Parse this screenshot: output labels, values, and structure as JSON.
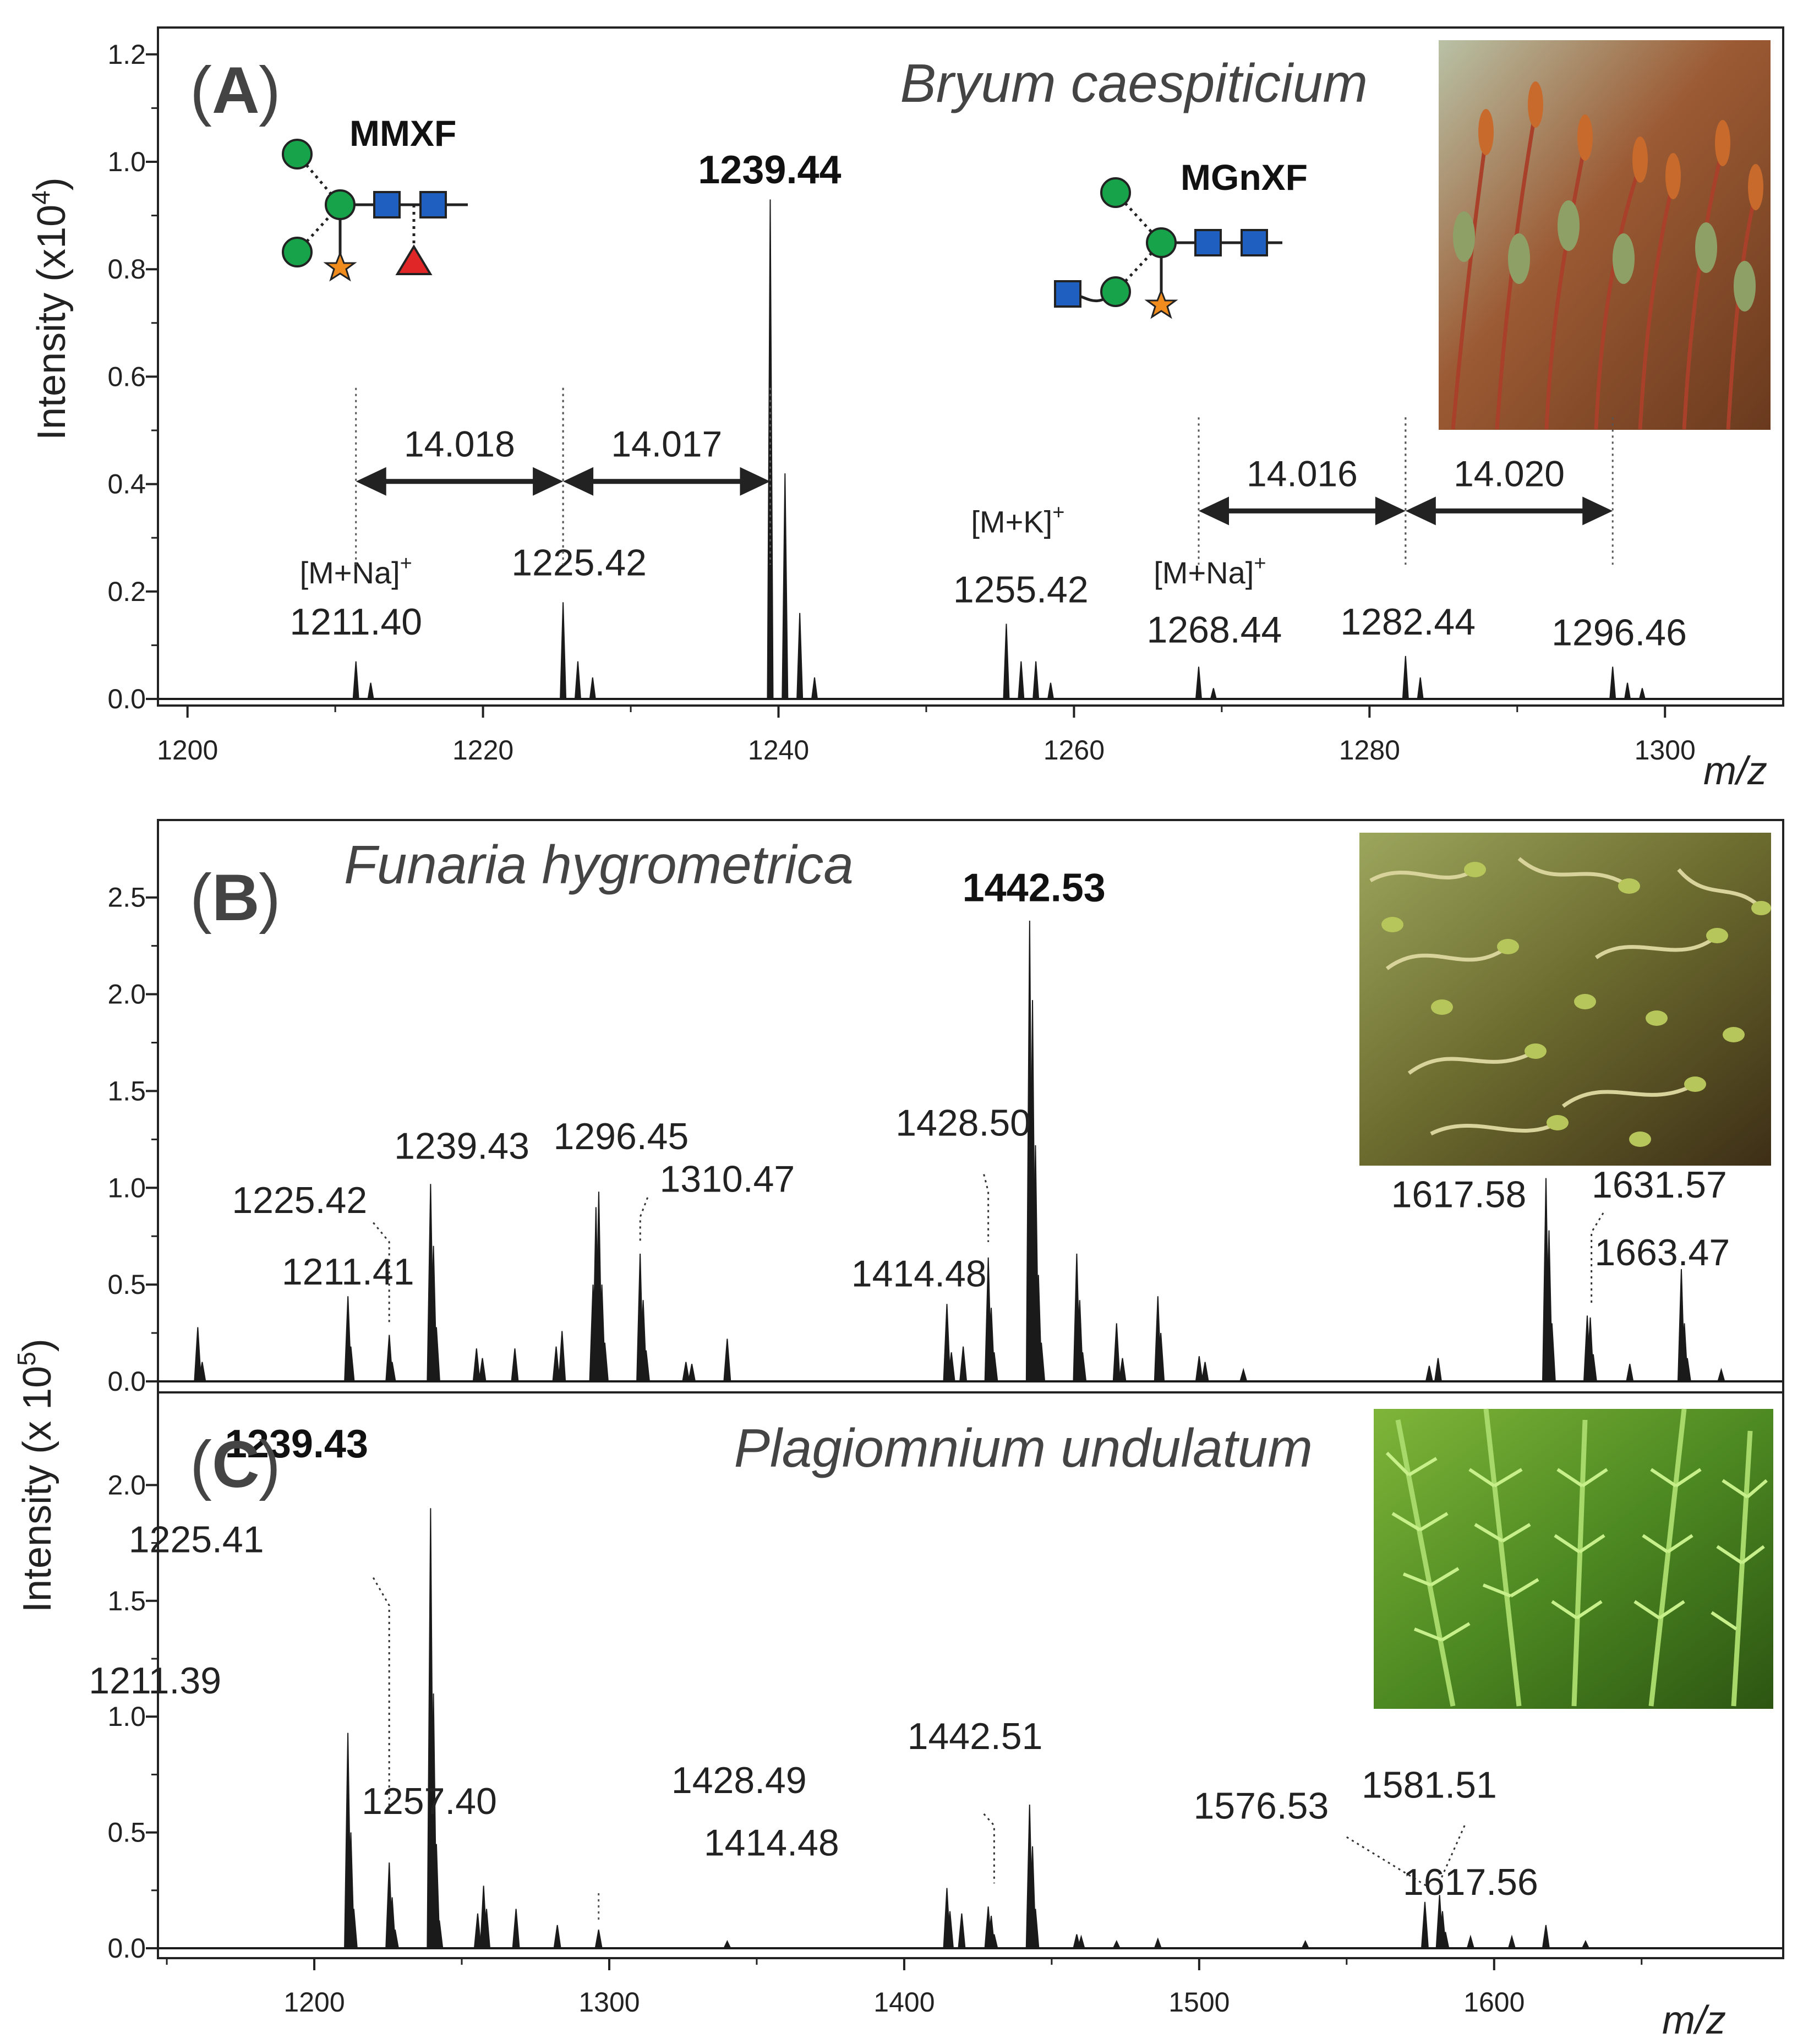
{
  "colors": {
    "frame": "#222222",
    "spectrum": "#1a1a1a",
    "mannose": "#17a34a",
    "glcnac": "#1f5fbf",
    "xylose": "#f08c1e",
    "fucose": "#e02626"
  },
  "chart_data": [
    {
      "panel": "A",
      "type": "line",
      "title": "Bryum caespiticium",
      "panel_letter": "A",
      "xlabel": "m/z",
      "ylabel": "Intensity (x10",
      "ylabel_exp": "4",
      "ylabel_close": ")",
      "xlim": [
        1198,
        1308
      ],
      "ylim": [
        0,
        1.25
      ],
      "xticks": [
        1200,
        1220,
        1240,
        1260,
        1280,
        1300
      ],
      "yticks": [
        0.0,
        0.2,
        0.4,
        0.6,
        0.8,
        1.0,
        1.2
      ],
      "ytick_labels": [
        "0.0",
        "0.2",
        "0.4",
        "0.6",
        "0.8",
        "1.0",
        "1.2"
      ],
      "photo": "moss sporophytes with red setae",
      "peaks": [
        {
          "mz": 1211.4,
          "y": 0.07
        },
        {
          "mz": 1212.4,
          "y": 0.03
        },
        {
          "mz": 1225.42,
          "y": 0.18
        },
        {
          "mz": 1226.42,
          "y": 0.07
        },
        {
          "mz": 1227.42,
          "y": 0.04
        },
        {
          "mz": 1239.44,
          "y": 0.93
        },
        {
          "mz": 1240.44,
          "y": 0.42
        },
        {
          "mz": 1241.44,
          "y": 0.16
        },
        {
          "mz": 1242.44,
          "y": 0.04
        },
        {
          "mz": 1255.42,
          "y": 0.14
        },
        {
          "mz": 1256.42,
          "y": 0.07
        },
        {
          "mz": 1257.42,
          "y": 0.07
        },
        {
          "mz": 1258.42,
          "y": 0.03
        },
        {
          "mz": 1268.44,
          "y": 0.06
        },
        {
          "mz": 1269.44,
          "y": 0.02
        },
        {
          "mz": 1282.44,
          "y": 0.08
        },
        {
          "mz": 1283.44,
          "y": 0.04
        },
        {
          "mz": 1296.46,
          "y": 0.06
        },
        {
          "mz": 1297.46,
          "y": 0.03
        },
        {
          "mz": 1298.46,
          "y": 0.02
        }
      ],
      "labels": [
        {
          "text": "1211.40",
          "mz": 1211.4,
          "y": 0.12,
          "bold": false
        },
        {
          "text": "1225.42",
          "mz": 1226.5,
          "y": 0.23,
          "bold": false
        },
        {
          "text": "1239.44",
          "mz": 1239.4,
          "y": 0.96,
          "bold": true
        },
        {
          "text": "1255.42",
          "mz": 1256.4,
          "y": 0.18,
          "bold": false
        },
        {
          "text": "1268.44",
          "mz": 1269.5,
          "y": 0.105,
          "bold": false
        },
        {
          "text": "1282.44",
          "mz": 1282.6,
          "y": 0.12,
          "bold": false
        },
        {
          "text": "1296.46",
          "mz": 1296.9,
          "y": 0.1,
          "bold": false
        }
      ],
      "ions": [
        {
          "text": "[M+Na]",
          "sup": "+",
          "mz": 1211.4,
          "y": 0.215
        },
        {
          "text": "[M+K]",
          "sup": "+",
          "mz": 1256.2,
          "y": 0.31
        },
        {
          "text": "[M+Na]",
          "sup": "+",
          "mz": 1269.2,
          "y": 0.215
        }
      ],
      "deltas": [
        {
          "text": "14.018",
          "from": 1211.4,
          "to": 1225.42,
          "y": 0.405
        },
        {
          "text": "14.017",
          "from": 1225.42,
          "to": 1239.44,
          "y": 0.405
        },
        {
          "text": "14.016",
          "from": 1268.44,
          "to": 1282.44,
          "y": 0.35
        },
        {
          "text": "14.020",
          "from": 1282.44,
          "to": 1296.46,
          "y": 0.35
        }
      ],
      "glycans": [
        {
          "name": "MMXF",
          "type": "MMXF"
        },
        {
          "name": "MGnXF",
          "type": "MGnXF"
        }
      ]
    },
    {
      "panel": "B",
      "type": "line",
      "title": "Funaria hygrometrica",
      "panel_letter": "B",
      "xlabel": "",
      "ylabel": "",
      "xlim": [
        1147,
        1698
      ],
      "ylim": [
        0,
        2.9
      ],
      "yticks": [
        0.0,
        0.5,
        1.0,
        1.5,
        2.0,
        2.5
      ],
      "ytick_labels": [
        "0.0",
        "0.5",
        "1.0",
        "1.5",
        "2.0",
        "2.5"
      ],
      "photo": "moss with curved setae and capsules",
      "peaks": [
        {
          "mz": 1160.5,
          "y": 0.28
        },
        {
          "mz": 1162,
          "y": 0.1
        },
        {
          "mz": 1211.41,
          "y": 0.44
        },
        {
          "mz": 1212.4,
          "y": 0.18
        },
        {
          "mz": 1225.42,
          "y": 0.24
        },
        {
          "mz": 1226.4,
          "y": 0.1
        },
        {
          "mz": 1239.43,
          "y": 1.02
        },
        {
          "mz": 1240.4,
          "y": 0.7
        },
        {
          "mz": 1241.4,
          "y": 0.28
        },
        {
          "mz": 1255,
          "y": 0.17
        },
        {
          "mz": 1257,
          "y": 0.12
        },
        {
          "mz": 1268,
          "y": 0.17
        },
        {
          "mz": 1282,
          "y": 0.18
        },
        {
          "mz": 1284,
          "y": 0.26
        },
        {
          "mz": 1294.5,
          "y": 0.5
        },
        {
          "mz": 1295.5,
          "y": 0.9
        },
        {
          "mz": 1296.45,
          "y": 0.98
        },
        {
          "mz": 1297.5,
          "y": 0.5
        },
        {
          "mz": 1298.5,
          "y": 0.2
        },
        {
          "mz": 1310.47,
          "y": 0.66
        },
        {
          "mz": 1311.5,
          "y": 0.42
        },
        {
          "mz": 1312.5,
          "y": 0.16
        },
        {
          "mz": 1326,
          "y": 0.1
        },
        {
          "mz": 1328,
          "y": 0.09
        },
        {
          "mz": 1340,
          "y": 0.22
        },
        {
          "mz": 1414.48,
          "y": 0.4
        },
        {
          "mz": 1416,
          "y": 0.15
        },
        {
          "mz": 1420,
          "y": 0.18
        },
        {
          "mz": 1428.5,
          "y": 0.64
        },
        {
          "mz": 1429.5,
          "y": 0.38
        },
        {
          "mz": 1430.5,
          "y": 0.15
        },
        {
          "mz": 1442.53,
          "y": 2.38
        },
        {
          "mz": 1443.5,
          "y": 1.97
        },
        {
          "mz": 1444.5,
          "y": 1.22
        },
        {
          "mz": 1445.5,
          "y": 0.55
        },
        {
          "mz": 1446.5,
          "y": 0.2
        },
        {
          "mz": 1458.5,
          "y": 0.66
        },
        {
          "mz": 1459.5,
          "y": 0.42
        },
        {
          "mz": 1460.5,
          "y": 0.15
        },
        {
          "mz": 1472,
          "y": 0.3
        },
        {
          "mz": 1474,
          "y": 0.12
        },
        {
          "mz": 1486,
          "y": 0.44
        },
        {
          "mz": 1487,
          "y": 0.25
        },
        {
          "mz": 1500,
          "y": 0.13
        },
        {
          "mz": 1502,
          "y": 0.1
        },
        {
          "mz": 1515,
          "y": 0.06
        },
        {
          "mz": 1578,
          "y": 0.08
        },
        {
          "mz": 1581,
          "y": 0.12
        },
        {
          "mz": 1617.58,
          "y": 1.05
        },
        {
          "mz": 1618.6,
          "y": 0.78
        },
        {
          "mz": 1619.6,
          "y": 0.3
        },
        {
          "mz": 1631.57,
          "y": 0.34
        },
        {
          "mz": 1632.6,
          "y": 0.33
        },
        {
          "mz": 1633.6,
          "y": 0.14
        },
        {
          "mz": 1646,
          "y": 0.09
        },
        {
          "mz": 1663.47,
          "y": 0.58
        },
        {
          "mz": 1664.5,
          "y": 0.3
        },
        {
          "mz": 1665.5,
          "y": 0.12
        },
        {
          "mz": 1677,
          "y": 0.06
        }
      ],
      "labels": [
        {
          "text": "1211.41",
          "mz": 1211.41,
          "y": 0.5,
          "bold": false
        },
        {
          "text": "1225.42",
          "mz": 1195,
          "y": 0.87,
          "bold": false
        },
        {
          "text": "1239.43",
          "mz": 1250,
          "y": 1.15,
          "bold": false
        },
        {
          "text": "1296.45",
          "mz": 1304,
          "y": 1.2,
          "bold": false
        },
        {
          "text": "1310.47",
          "mz": 1340,
          "y": 0.98,
          "bold": false
        },
        {
          "text": "1414.48",
          "mz": 1405,
          "y": 0.49,
          "bold": false
        },
        {
          "text": "1428.50",
          "mz": 1420,
          "y": 1.27,
          "bold": false
        },
        {
          "text": "1442.53",
          "mz": 1444,
          "y": 2.48,
          "bold": true
        },
        {
          "text": "1617.58",
          "mz": 1588,
          "y": 0.9,
          "bold": false
        },
        {
          "text": "1631.57",
          "mz": 1656,
          "y": 0.95,
          "bold": false
        },
        {
          "text": "1663.47",
          "mz": 1657,
          "y": 0.6,
          "bold": false
        }
      ],
      "leaders": [
        {
          "points": [
            [
              1220,
              0.82
            ],
            [
              1225.4,
              0.72
            ],
            [
              1225.4,
              0.3
            ]
          ]
        },
        {
          "points": [
            [
              1313,
              0.95
            ],
            [
              1310.5,
              0.85
            ],
            [
              1310.5,
              0.72
            ]
          ]
        },
        {
          "points": [
            [
              1427,
              1.07
            ],
            [
              1428.5,
              0.98
            ],
            [
              1428.5,
              0.72
            ]
          ]
        },
        {
          "points": [
            [
              1637,
              0.87
            ],
            [
              1633,
              0.77
            ],
            [
              1633,
              0.4
            ]
          ]
        }
      ]
    },
    {
      "panel": "C",
      "type": "line",
      "title": "Plagiomnium undulatum",
      "panel_letter": "C",
      "xlabel": "m/z",
      "ylabel": "",
      "xlim": [
        1147,
        1698
      ],
      "ylim": [
        0,
        2.4
      ],
      "xticks": [
        1200,
        1300,
        1400,
        1500,
        1600
      ],
      "yticks": [
        0.0,
        0.5,
        1.0,
        1.5,
        2.0
      ],
      "ytick_labels": [
        "0.0",
        "0.5",
        "1.0",
        "1.5",
        "2.0"
      ],
      "photo": "moss with wavy green leaves",
      "peaks": [
        {
          "mz": 1211.39,
          "y": 0.93
        },
        {
          "mz": 1212.4,
          "y": 0.5
        },
        {
          "mz": 1213.4,
          "y": 0.17
        },
        {
          "mz": 1225.41,
          "y": 0.37
        },
        {
          "mz": 1226.4,
          "y": 0.22
        },
        {
          "mz": 1227.4,
          "y": 0.08
        },
        {
          "mz": 1239.43,
          "y": 1.9
        },
        {
          "mz": 1240.4,
          "y": 1.1
        },
        {
          "mz": 1241.4,
          "y": 0.45
        },
        {
          "mz": 1242.4,
          "y": 0.12
        },
        {
          "mz": 1255.4,
          "y": 0.15
        },
        {
          "mz": 1257.4,
          "y": 0.27
        },
        {
          "mz": 1258.4,
          "y": 0.17
        },
        {
          "mz": 1268.4,
          "y": 0.17
        },
        {
          "mz": 1282.4,
          "y": 0.1
        },
        {
          "mz": 1296.4,
          "y": 0.08
        },
        {
          "mz": 1340,
          "y": 0.03
        },
        {
          "mz": 1414.48,
          "y": 0.26
        },
        {
          "mz": 1415.5,
          "y": 0.16
        },
        {
          "mz": 1419.5,
          "y": 0.15
        },
        {
          "mz": 1428.49,
          "y": 0.18
        },
        {
          "mz": 1429.5,
          "y": 0.14
        },
        {
          "mz": 1430.5,
          "y": 0.06
        },
        {
          "mz": 1442.51,
          "y": 0.62
        },
        {
          "mz": 1443.5,
          "y": 0.44
        },
        {
          "mz": 1444.5,
          "y": 0.17
        },
        {
          "mz": 1458.5,
          "y": 0.06
        },
        {
          "mz": 1460,
          "y": 0.05
        },
        {
          "mz": 1472,
          "y": 0.03
        },
        {
          "mz": 1486,
          "y": 0.04
        },
        {
          "mz": 1536,
          "y": 0.03
        },
        {
          "mz": 1576.53,
          "y": 0.2
        },
        {
          "mz": 1581.51,
          "y": 0.23
        },
        {
          "mz": 1582.5,
          "y": 0.16
        },
        {
          "mz": 1583.5,
          "y": 0.07
        },
        {
          "mz": 1592,
          "y": 0.05
        },
        {
          "mz": 1606,
          "y": 0.05
        },
        {
          "mz": 1617.56,
          "y": 0.1
        },
        {
          "mz": 1631,
          "y": 0.03
        }
      ],
      "labels": [
        {
          "text": "1239.43",
          "mz": 1194,
          "y": 2.12,
          "bold": true
        },
        {
          "text": "1225.41",
          "mz": 1160,
          "y": 1.71,
          "bold": false
        },
        {
          "text": "1211.39",
          "mz": 1146,
          "y": 1.1,
          "bold": false
        },
        {
          "text": "1257.40",
          "mz": 1239,
          "y": 0.58,
          "bold": false
        },
        {
          "text": "1428.49",
          "mz": 1344,
          "y": 0.67,
          "bold": false
        },
        {
          "text": "1414.48",
          "mz": 1355,
          "y": 0.4,
          "bold": false
        },
        {
          "text": "1442.51",
          "mz": 1424,
          "y": 0.86,
          "bold": false
        },
        {
          "text": "1576.53",
          "mz": 1521,
          "y": 0.56,
          "bold": false
        },
        {
          "text": "1581.51",
          "mz": 1578,
          "y": 0.65,
          "bold": false
        },
        {
          "text": "1617.56",
          "mz": 1592,
          "y": 0.23,
          "bold": false
        }
      ],
      "leaders": [
        {
          "points": [
            [
              1220,
              1.6
            ],
            [
              1225.4,
              1.48
            ],
            [
              1225.4,
              0.58
            ]
          ]
        },
        {
          "points": [
            [
              1427,
              0.58
            ],
            [
              1430.5,
              0.53
            ],
            [
              1430.5,
              0.28
            ]
          ]
        },
        {
          "points": [
            [
              1550,
              0.48
            ],
            [
              1577,
              0.27
            ]
          ]
        },
        {
          "points": [
            [
              1590,
              0.53
            ],
            [
              1582,
              0.3
            ]
          ]
        }
      ]
    }
  ]
}
